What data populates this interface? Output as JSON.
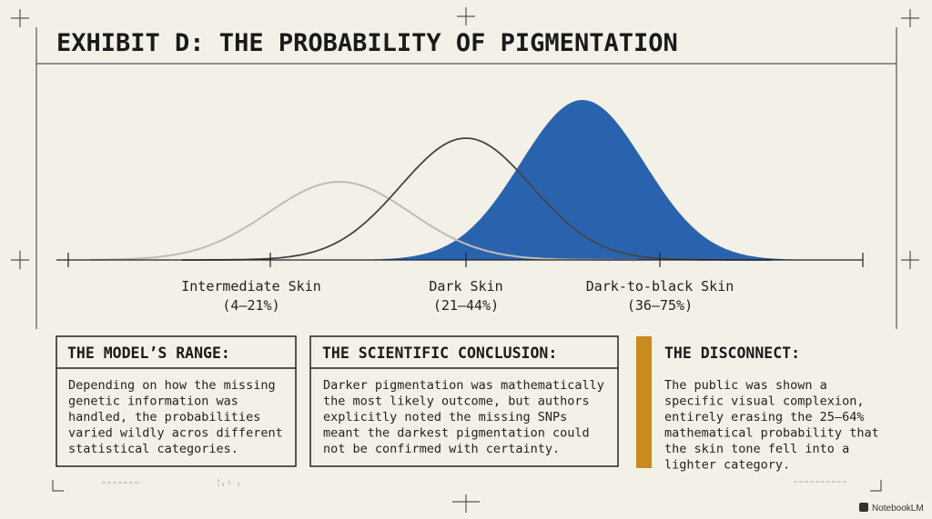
{
  "header": {
    "title": "EXHIBIT D: THE PROBABILITY OF PIGMENTATION"
  },
  "curves": [
    {
      "label": "Intermediate Skin",
      "range": "(4–21%)"
    },
    {
      "label": "Dark Skin",
      "range": "(21–44%)"
    },
    {
      "label": "Dark-to-black Skin",
      "range": "(36–75%)"
    }
  ],
  "panels": [
    {
      "heading": "THE MODEL’S RANGE:",
      "body": [
        "Depending on how the missing",
        "genetic information was",
        "handled, the probabilities",
        "varied wildly acros different",
        "statistical categories."
      ]
    },
    {
      "heading": "THE SCIENTIFIC CONCLUSION:",
      "body": [
        "Darker pigmentation was mathematically",
        "the most likely outcome, but authors",
        "explicitly noted the missing SNPs",
        "meant the darkest pigmentation could",
        "not be confirmed with certainty."
      ]
    },
    {
      "heading": "THE DISCONNECT:",
      "body": [
        "The public was shown a",
        "specific visual complexion,",
        "entirely erasing the 25–64%",
        "mathematical probability that",
        "the skin tone fell into a",
        "lighter category."
      ]
    }
  ],
  "footer": {
    "brand": "NotebookLM"
  }
}
